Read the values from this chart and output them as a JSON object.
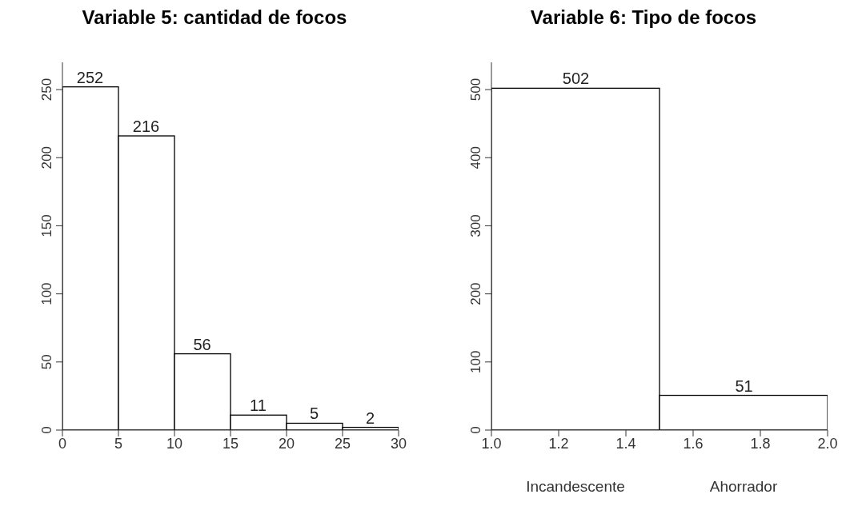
{
  "chart_data": [
    {
      "type": "histogram",
      "title": "Variable 5: cantidad de focos",
      "bins": [
        0,
        5,
        10,
        15,
        20,
        25,
        30
      ],
      "values": [
        252,
        216,
        56,
        11,
        5,
        2
      ],
      "color": "#ffffff",
      "xlim": [
        0,
        30
      ],
      "xticks": [
        0,
        5,
        10,
        15,
        20,
        25,
        30
      ],
      "ylim": [
        0,
        270
      ],
      "yticks": [
        0,
        50,
        100,
        150,
        200,
        250
      ],
      "data_labels": true,
      "grid": false,
      "legend": false
    },
    {
      "type": "histogram",
      "title": "Variable 6: Tipo de focos",
      "bins": [
        1,
        1.5,
        2
      ],
      "values": [
        502,
        51
      ],
      "color": "#ffffff",
      "xlim": [
        1,
        2
      ],
      "xticks": [
        {
          "value": 1,
          "label": "1.0"
        },
        {
          "value": 1.2,
          "label": "1.2"
        },
        {
          "value": 1.4,
          "label": "1.4"
        },
        {
          "value": 1.6,
          "label": "1.6"
        },
        {
          "value": 1.8,
          "label": "1.8"
        },
        {
          "value": 2,
          "label": "2.0"
        }
      ],
      "ylim": [
        0,
        540
      ],
      "yticks": [
        0,
        100,
        200,
        300,
        400,
        500
      ],
      "data_labels": true,
      "grid": false,
      "legend": false,
      "annotations": [
        "Incandescente",
        "Ahorrador"
      ]
    }
  ]
}
